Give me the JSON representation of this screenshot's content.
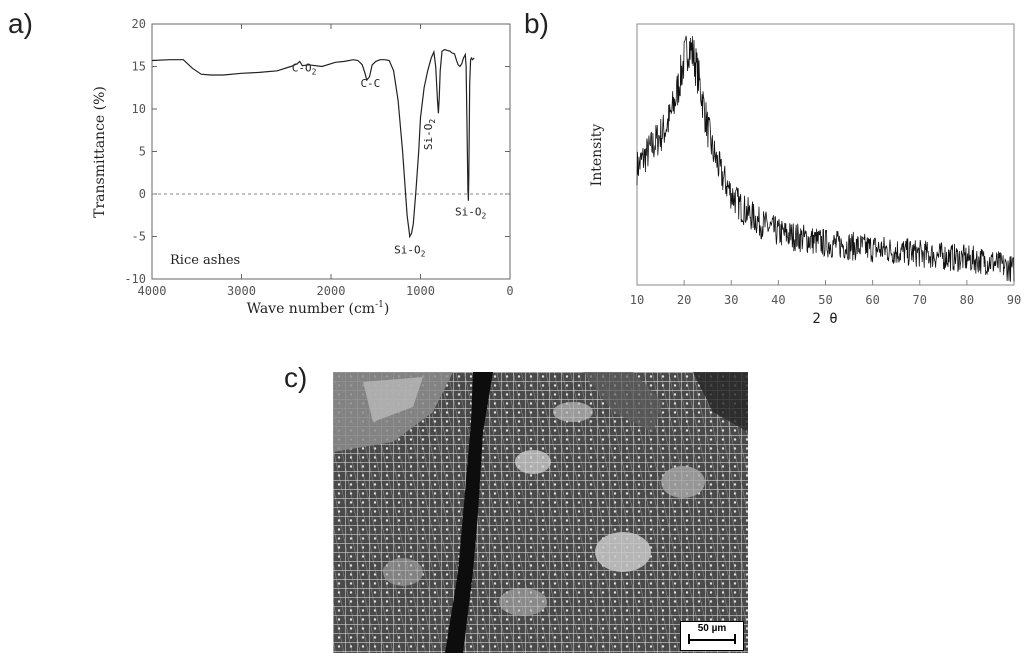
{
  "panel_labels": {
    "a": "a)",
    "b": "b)",
    "c": "c)"
  },
  "chart_data": [
    {
      "type": "line",
      "panel": "a",
      "title": "",
      "xlabel": "Wave number",
      "xlabel_unit": "(cm",
      "xlabel_exp": "-1",
      "xlabel_close": ")",
      "ylabel": "Transmittance",
      "ylabel_unit": "(%)",
      "xlim": [
        4000,
        0
      ],
      "ylim": [
        -10,
        20
      ],
      "xticks": [
        "4000",
        "3000",
        "2000",
        "1000",
        "0"
      ],
      "yticks": [
        "20",
        "15",
        "10",
        "5",
        "0",
        "-5",
        "-10"
      ],
      "inner_label": "Rice ashes",
      "reference_line_y": 0,
      "annotations": [
        {
          "text": "C-O",
          "sub": "2",
          "x": 2300,
          "y": 14.4
        },
        {
          "text": "C-C",
          "x": 1560,
          "y": 12.6
        },
        {
          "text": "Si-O",
          "sub": "2",
          "x": 870,
          "y": 7,
          "vertical": true
        },
        {
          "text": "Si-O",
          "sub": "2",
          "x": 1120,
          "y": -7.0
        },
        {
          "text": "Si-O",
          "sub": "2",
          "x": 440,
          "y": -2.5
        }
      ],
      "series": [
        {
          "x": [
            4000,
            3800,
            3650,
            3550,
            3450,
            3350,
            3200,
            3000,
            2800,
            2600,
            2450,
            2380,
            2350,
            2320,
            2250,
            2100,
            1950,
            1850,
            1750,
            1700,
            1650,
            1620,
            1600,
            1570,
            1540,
            1500,
            1450,
            1400,
            1350,
            1300,
            1250,
            1200,
            1150,
            1120,
            1100,
            1080,
            1050,
            1020,
            1000,
            960,
            920,
            880,
            850,
            830,
            810,
            800,
            790,
            780,
            760,
            730,
            700,
            670,
            650,
            620,
            600,
            580,
            560,
            540,
            520,
            500,
            490,
            480,
            470,
            465,
            460,
            455,
            450,
            440,
            430,
            420,
            410,
            400
          ],
          "y": [
            15.7,
            15.8,
            15.8,
            14.8,
            14.1,
            14.0,
            14.0,
            14.2,
            14.3,
            14.5,
            15.0,
            15.3,
            15.6,
            15.1,
            15.2,
            15.0,
            15.5,
            15.6,
            15.8,
            15.7,
            15.2,
            14.2,
            13.4,
            13.8,
            15.2,
            15.6,
            15.8,
            15.8,
            15.7,
            14.5,
            11.0,
            5.0,
            -2.5,
            -5.0,
            -4.6,
            -3.5,
            0.5,
            5.0,
            9.0,
            12.5,
            14.5,
            16.0,
            16.7,
            15.0,
            11.0,
            9.5,
            11.5,
            14.5,
            16.8,
            17.0,
            16.9,
            16.8,
            16.6,
            16.5,
            15.8,
            15.2,
            15.0,
            15.3,
            16.0,
            16.4,
            15.0,
            8.0,
            0.5,
            -0.8,
            2.0,
            8.0,
            13.0,
            15.8,
            16.0,
            15.8,
            15.9,
            16.0
          ]
        }
      ]
    },
    {
      "type": "line",
      "panel": "b",
      "title": "",
      "xlabel": "2 θ",
      "ylabel": "Intensity",
      "xlim": [
        10,
        90
      ],
      "xticks": [
        "10",
        "20",
        "30",
        "40",
        "50",
        "60",
        "70",
        "80",
        "90"
      ],
      "series": [
        {
          "x": [
            10,
            12,
            14,
            16,
            17,
            18,
            19,
            20,
            21,
            22,
            23,
            24,
            25,
            26,
            28,
            30,
            32,
            34,
            36,
            38,
            40,
            45,
            50,
            55,
            60,
            65,
            70,
            75,
            80,
            85,
            88,
            90
          ],
          "y": [
            0.45,
            0.5,
            0.55,
            0.6,
            0.64,
            0.7,
            0.78,
            0.86,
            0.92,
            0.88,
            0.8,
            0.7,
            0.6,
            0.52,
            0.42,
            0.35,
            0.3,
            0.27,
            0.24,
            0.22,
            0.2,
            0.18,
            0.16,
            0.15,
            0.14,
            0.13,
            0.12,
            0.11,
            0.1,
            0.09,
            0.07,
            0.06
          ]
        }
      ]
    }
  ],
  "sem_image": {
    "scale_label": "50 µm"
  }
}
